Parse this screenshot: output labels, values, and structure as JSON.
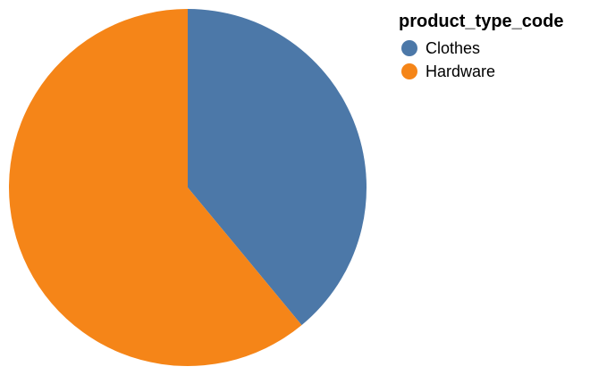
{
  "chart_data": {
    "type": "pie",
    "categories": [
      "Clothes",
      "Hardware"
    ],
    "values": [
      39,
      61
    ],
    "colors": [
      "#4c78a8",
      "#f58518"
    ],
    "title": "",
    "legend": {
      "title": "product_type_code",
      "placement": "top-right"
    }
  }
}
